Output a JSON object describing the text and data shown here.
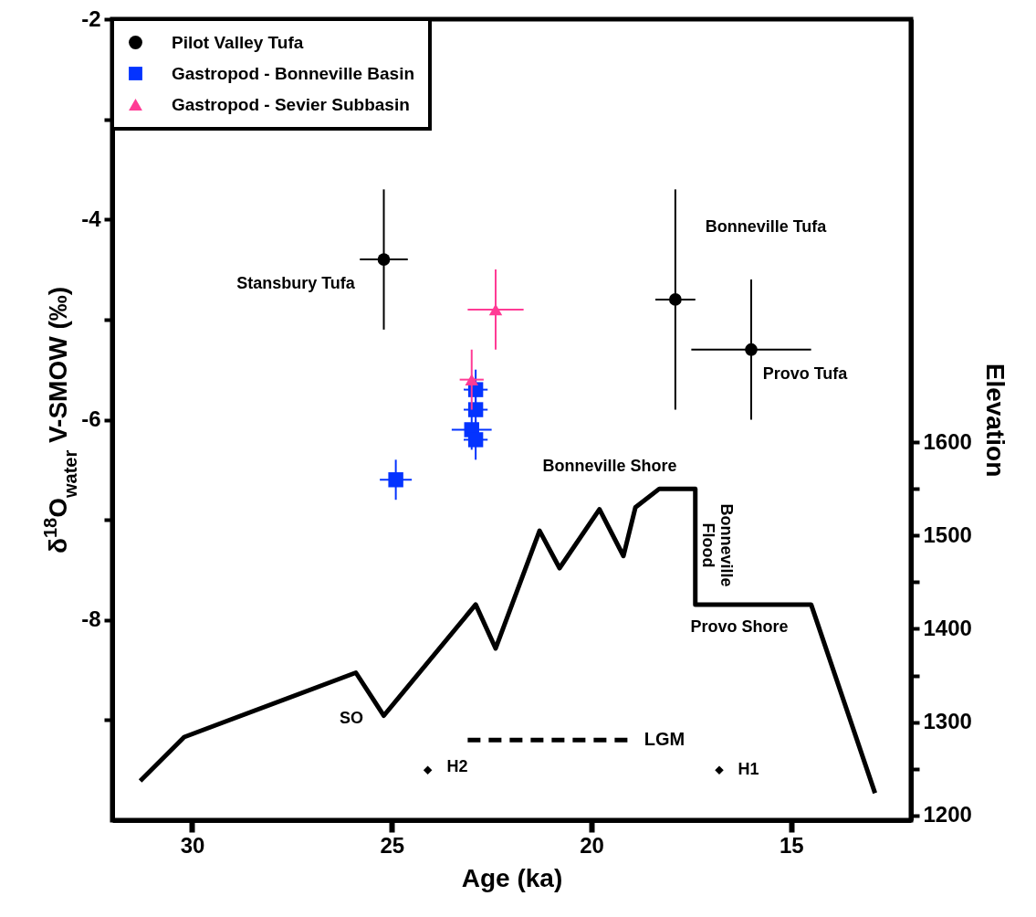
{
  "chart_data": {
    "type": "scatter",
    "xlabel": "Age (ka)",
    "ylabel": "δ$^{18}$O$_{water}$ V-SMOW (‰)",
    "y2label": "Elevation",
    "xlim": [
      32,
      12
    ],
    "xticks": [
      30,
      25,
      20,
      15
    ],
    "ylim": [
      -10,
      -2
    ],
    "yticks": [
      -2,
      {
        "value": -3,
        "label": null
      },
      -4,
      {
        "value": -5,
        "label": null
      },
      -6,
      {
        "value": -7,
        "label": null
      },
      -8,
      {
        "value": -9,
        "label": null
      }
    ],
    "y2lim": [
      1195,
      2053
    ],
    "y2ticks": [
      1200,
      {
        "value": 1250,
        "label": null
      },
      1300,
      {
        "value": 1350,
        "label": null
      },
      1400,
      {
        "value": 1450,
        "label": null
      },
      1500,
      {
        "value": 1550,
        "label": null
      },
      1600
    ],
    "grid": false,
    "legend": "top left",
    "series": [
      {
        "name": "Pilot Valley Tufa",
        "type": "scatter",
        "marker": "circle",
        "color": "#000000",
        "x": [
          25.2,
          17.9,
          16.0
        ],
        "values": [
          -4.4,
          -4.8,
          -5.3
        ],
        "errors": [
          0.7,
          1.1,
          0.7
        ],
        "xerrors": [
          0.6,
          0.5,
          1.5
        ]
      },
      {
        "name": "Gastropod - Bonneville Basin",
        "marker": "square",
        "color": "#0433ff",
        "x": [
          24.9,
          22.9,
          22.9,
          23.0,
          22.9
        ],
        "values": [
          -6.6,
          -5.7,
          -5.9,
          -6.1,
          -6.2
        ],
        "errors": [
          0.2,
          0.2,
          0.2,
          0.2,
          0.2
        ],
        "xerrors": [
          0.4,
          0.3,
          0.3,
          0.5,
          0.3
        ]
      },
      {
        "name": "Gastropod - Sevier Subbasin",
        "marker": "triangle",
        "color": "#ff3b95",
        "x": [
          23.0,
          22.4
        ],
        "values": [
          -5.6,
          -4.9
        ],
        "errors": [
          0.3,
          0.4
        ],
        "xerrors": [
          0.3,
          0.7
        ]
      },
      {
        "type": "line",
        "axis": "y2",
        "color": "#000000",
        "marker": "none",
        "line_style": "solid",
        "x": [
          31.3,
          30.2,
          25.9,
          25.2,
          22.9,
          22.4,
          21.3,
          20.8,
          19.8,
          19.2,
          18.9,
          18.3,
          17.4,
          17.4,
          14.5,
          12.9
        ],
        "values": [
          1237,
          1284,
          1353,
          1307,
          1426,
          1379,
          1505,
          1465,
          1528,
          1478,
          1530,
          1550,
          1550,
          1426,
          1426,
          1224
        ]
      },
      {
        "name": "LGM",
        "type": "line",
        "color": "#000000",
        "marker": "none",
        "line_style": "dashed",
        "x": [
          23.1,
          19.0
        ],
        "values": [
          -9.2,
          -9.2
        ]
      },
      {
        "marker": "diamond",
        "color": "#000000",
        "x": [
          24.1,
          16.8
        ],
        "values": [
          -9.5,
          -9.5
        ]
      }
    ],
    "annotations": [
      "Stansbury Tufa",
      "Bonneville Tufa",
      "Provo Tufa",
      "Bonneville Shore",
      "Bonneville\nFlood",
      "Provo Shore",
      "SO",
      "H2",
      "H1"
    ]
  }
}
